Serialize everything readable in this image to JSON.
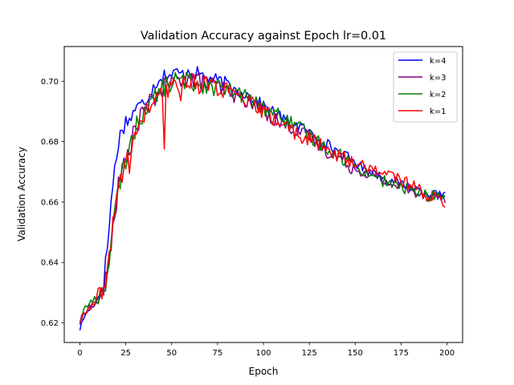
{
  "chart_data": {
    "type": "line",
    "title": "Validation Accuracy against Epoch lr=0.01",
    "xlabel": "Epoch",
    "ylabel": "Validation Accuracy",
    "xlim": [
      -8.5,
      208.5
    ],
    "ylim": [
      0.6135,
      0.7115
    ],
    "xticks": [
      0,
      25,
      50,
      75,
      100,
      125,
      150,
      175,
      200
    ],
    "yticks": [
      0.62,
      0.64,
      0.66,
      0.68,
      0.7
    ],
    "ytick_labels": [
      "0.62",
      "0.64",
      "0.66",
      "0.68",
      "0.70"
    ],
    "grid": false,
    "legend_position": "top-right",
    "series": [
      {
        "name": "k=4",
        "color": "#0000ff",
        "anchors": [
          [
            0,
            0.618
          ],
          [
            3,
            0.623
          ],
          [
            6,
            0.625
          ],
          [
            9,
            0.627
          ],
          [
            11,
            0.63
          ],
          [
            13,
            0.634
          ],
          [
            15,
            0.645
          ],
          [
            17,
            0.66
          ],
          [
            19,
            0.671
          ],
          [
            21,
            0.68
          ],
          [
            23,
            0.684
          ],
          [
            25,
            0.687
          ],
          [
            27,
            0.687
          ],
          [
            30,
            0.691
          ],
          [
            33,
            0.692
          ],
          [
            36,
            0.694
          ],
          [
            40,
            0.698
          ],
          [
            43,
            0.701
          ],
          [
            46,
            0.702
          ],
          [
            50,
            0.702
          ],
          [
            53,
            0.703
          ],
          [
            56,
            0.702
          ],
          [
            59,
            0.704
          ],
          [
            62,
            0.703
          ],
          [
            66,
            0.702
          ],
          [
            70,
            0.701
          ],
          [
            75,
            0.7
          ],
          [
            80,
            0.699
          ],
          [
            85,
            0.697
          ],
          [
            90,
            0.696
          ],
          [
            95,
            0.694
          ],
          [
            100,
            0.692
          ],
          [
            105,
            0.69
          ],
          [
            110,
            0.688
          ],
          [
            115,
            0.686
          ],
          [
            120,
            0.685
          ],
          [
            125,
            0.683
          ],
          [
            130,
            0.681
          ],
          [
            135,
            0.679
          ],
          [
            140,
            0.677
          ],
          [
            145,
            0.675
          ],
          [
            150,
            0.673
          ],
          [
            155,
            0.671
          ],
          [
            160,
            0.67
          ],
          [
            165,
            0.668
          ],
          [
            170,
            0.667
          ],
          [
            175,
            0.666
          ],
          [
            180,
            0.665
          ],
          [
            185,
            0.664
          ],
          [
            190,
            0.663
          ],
          [
            195,
            0.662
          ],
          [
            199,
            0.662
          ]
        ],
        "amp": [
          0.0006,
          0.0018,
          0.0015,
          0.0012,
          0.001
        ]
      },
      {
        "name": "k=3",
        "color": "#800080",
        "anchors": [
          [
            0,
            0.62
          ],
          [
            3,
            0.624
          ],
          [
            6,
            0.626
          ],
          [
            9,
            0.627
          ],
          [
            12,
            0.629
          ],
          [
            15,
            0.636
          ],
          [
            18,
            0.652
          ],
          [
            21,
            0.665
          ],
          [
            24,
            0.672
          ],
          [
            27,
            0.678
          ],
          [
            30,
            0.684
          ],
          [
            33,
            0.688
          ],
          [
            36,
            0.691
          ],
          [
            40,
            0.694
          ],
          [
            44,
            0.697
          ],
          [
            48,
            0.699
          ],
          [
            52,
            0.7
          ],
          [
            56,
            0.701
          ],
          [
            60,
            0.701
          ],
          [
            65,
            0.7
          ],
          [
            70,
            0.699
          ],
          [
            75,
            0.698
          ],
          [
            80,
            0.697
          ],
          [
            85,
            0.695
          ],
          [
            90,
            0.694
          ],
          [
            95,
            0.692
          ],
          [
            100,
            0.69
          ],
          [
            105,
            0.688
          ],
          [
            110,
            0.686
          ],
          [
            115,
            0.685
          ],
          [
            120,
            0.683
          ],
          [
            125,
            0.681
          ],
          [
            130,
            0.679
          ],
          [
            135,
            0.677
          ],
          [
            140,
            0.675
          ],
          [
            145,
            0.673
          ],
          [
            150,
            0.671
          ],
          [
            155,
            0.67
          ],
          [
            160,
            0.669
          ],
          [
            165,
            0.667
          ],
          [
            170,
            0.666
          ],
          [
            175,
            0.665
          ],
          [
            180,
            0.664
          ],
          [
            185,
            0.663
          ],
          [
            190,
            0.662
          ],
          [
            195,
            0.662
          ],
          [
            199,
            0.661
          ]
        ],
        "amp": [
          0.0008,
          0.0022,
          0.002,
          0.0016,
          0.0012
        ]
      },
      {
        "name": "k=2",
        "color": "#008000",
        "anchors": [
          [
            0,
            0.621
          ],
          [
            3,
            0.625
          ],
          [
            6,
            0.627
          ],
          [
            9,
            0.628
          ],
          [
            12,
            0.63
          ],
          [
            15,
            0.636
          ],
          [
            18,
            0.651
          ],
          [
            21,
            0.664
          ],
          [
            24,
            0.672
          ],
          [
            27,
            0.678
          ],
          [
            30,
            0.684
          ],
          [
            33,
            0.688
          ],
          [
            36,
            0.691
          ],
          [
            40,
            0.694
          ],
          [
            44,
            0.697
          ],
          [
            48,
            0.699
          ],
          [
            52,
            0.7
          ],
          [
            56,
            0.7
          ],
          [
            60,
            0.7
          ],
          [
            65,
            0.699
          ],
          [
            70,
            0.699
          ],
          [
            75,
            0.698
          ],
          [
            80,
            0.697
          ],
          [
            85,
            0.696
          ],
          [
            90,
            0.695
          ],
          [
            95,
            0.693
          ],
          [
            100,
            0.691
          ],
          [
            105,
            0.69
          ],
          [
            110,
            0.688
          ],
          [
            115,
            0.686
          ],
          [
            120,
            0.684
          ],
          [
            125,
            0.682
          ],
          [
            130,
            0.68
          ],
          [
            135,
            0.678
          ],
          [
            140,
            0.676
          ],
          [
            145,
            0.674
          ],
          [
            150,
            0.672
          ],
          [
            155,
            0.67
          ],
          [
            160,
            0.669
          ],
          [
            165,
            0.667
          ],
          [
            170,
            0.666
          ],
          [
            175,
            0.665
          ],
          [
            180,
            0.664
          ],
          [
            185,
            0.663
          ],
          [
            190,
            0.662
          ],
          [
            195,
            0.662
          ],
          [
            199,
            0.662
          ]
        ],
        "amp": [
          0.0008,
          0.0022,
          0.002,
          0.0016,
          0.0012
        ]
      },
      {
        "name": "k=1",
        "color": "#ff0000",
        "anchors": [
          [
            0,
            0.621
          ],
          [
            3,
            0.623
          ],
          [
            6,
            0.625
          ],
          [
            9,
            0.627
          ],
          [
            12,
            0.63
          ],
          [
            15,
            0.637
          ],
          [
            18,
            0.652
          ],
          [
            21,
            0.664
          ],
          [
            24,
            0.671
          ],
          [
            27,
            0.677
          ],
          [
            30,
            0.682
          ],
          [
            33,
            0.686
          ],
          [
            36,
            0.69
          ],
          [
            40,
            0.693
          ],
          [
            44,
            0.695
          ],
          [
            48,
            0.697
          ],
          [
            52,
            0.699
          ],
          [
            56,
            0.7
          ],
          [
            60,
            0.7
          ],
          [
            65,
            0.699
          ],
          [
            70,
            0.699
          ],
          [
            75,
            0.698
          ],
          [
            80,
            0.697
          ],
          [
            85,
            0.695
          ],
          [
            90,
            0.693
          ],
          [
            95,
            0.692
          ],
          [
            100,
            0.69
          ],
          [
            105,
            0.688
          ],
          [
            110,
            0.686
          ],
          [
            115,
            0.684
          ],
          [
            120,
            0.682
          ],
          [
            125,
            0.681
          ],
          [
            130,
            0.679
          ],
          [
            135,
            0.677
          ],
          [
            140,
            0.676
          ],
          [
            145,
            0.674
          ],
          [
            150,
            0.673
          ],
          [
            155,
            0.672
          ],
          [
            160,
            0.671
          ],
          [
            165,
            0.67
          ],
          [
            170,
            0.669
          ],
          [
            175,
            0.667
          ],
          [
            180,
            0.666
          ],
          [
            185,
            0.664
          ],
          [
            190,
            0.662
          ],
          [
            195,
            0.661
          ],
          [
            199,
            0.66
          ]
        ],
        "amp": [
          0.0008,
          0.0022,
          0.002,
          0.0016,
          0.0012
        ],
        "spikes": [
          [
            46,
            0.6775
          ],
          [
            27,
            0.6695
          ],
          [
            55,
            0.6935
          ]
        ]
      }
    ]
  }
}
